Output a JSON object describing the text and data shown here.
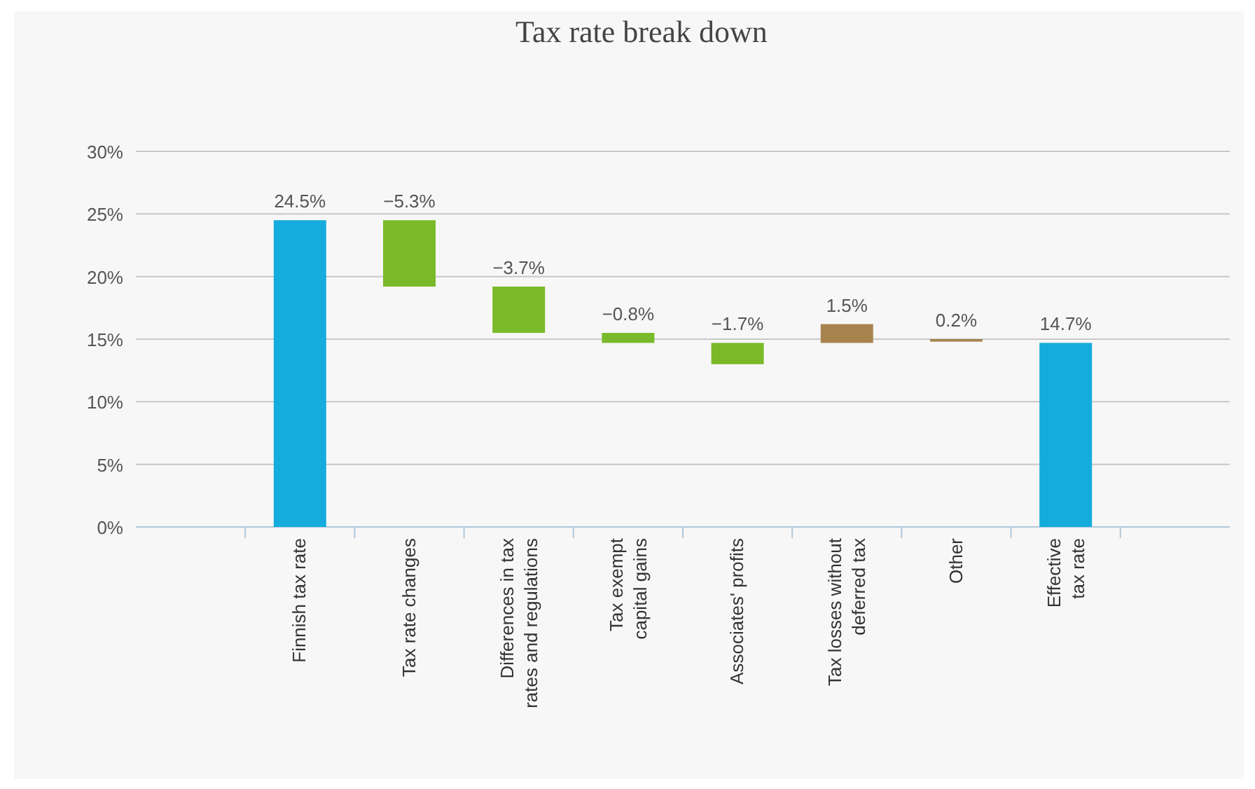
{
  "chart_data": {
    "type": "bar",
    "title": "Tax rate break down",
    "categories": [
      null,
      "Finnish tax rate",
      "Tax rate changes",
      "Differences in tax\nrates and regulations",
      "Tax exempt\ncapital gains",
      "Associates' profits",
      "Tax losses without\ndeferred tax",
      "Other",
      "Effective\ntax rate",
      null
    ],
    "values": [
      null,
      24.5,
      -5.3,
      -3.7,
      -0.8,
      -1.7,
      1.5,
      0.2,
      14.7,
      null
    ],
    "base": [
      null,
      0,
      24.5,
      19.2,
      15.5,
      14.7,
      14.7,
      14.8,
      0,
      null
    ],
    "colors": [
      null,
      "#14acdc",
      "#7aba2a",
      "#7aba2a",
      "#7aba2a",
      "#7aba2a",
      "#a7844e",
      "#a7844e",
      "#14acdc",
      null
    ],
    "value_labels": [
      null,
      "24.5%",
      "−5.3%",
      "−3.7%",
      "−0.8%",
      "−1.7%",
      "1.5%",
      "0.2%",
      "14.7%",
      null
    ],
    "ylim": [
      0,
      30
    ],
    "yticks": [
      {
        "value": 0,
        "label": "0%"
      },
      {
        "value": 5,
        "label": "5%"
      },
      {
        "value": 10,
        "label": "10%"
      },
      {
        "value": 15,
        "label": "15%"
      },
      {
        "value": 20,
        "label": "20%"
      },
      {
        "value": 25,
        "label": "25%"
      },
      {
        "value": 30,
        "label": "30%"
      }
    ],
    "grid": "y"
  }
}
